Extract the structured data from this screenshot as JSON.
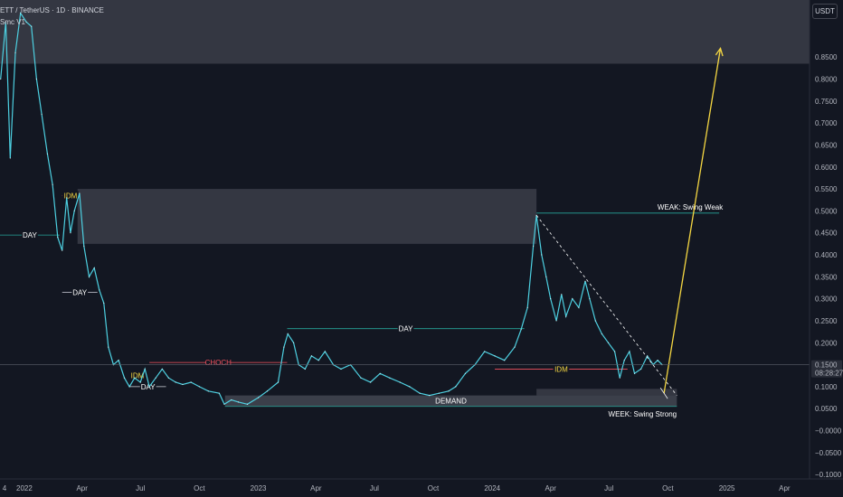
{
  "header": {
    "symbol_line": "ETT / TetherUS · 1D · BINANCE",
    "indicator_line": "Smc V1"
  },
  "price_axis": {
    "currency": "USDT",
    "current_price": "0.1500",
    "countdown": "08:28:27"
  },
  "chart_data": {
    "type": "line",
    "title": "",
    "x_axis": {
      "tick_labels": [
        "4",
        "2022",
        "Apr",
        "Jul",
        "Oct",
        "2023",
        "Apr",
        "Jul",
        "Oct",
        "2024",
        "Apr",
        "Jul",
        "Oct",
        "2025",
        "Apr"
      ],
      "tick_dates": [
        "2021-12-01",
        "2022-01-01",
        "2022-04-01",
        "2022-07-01",
        "2022-10-01",
        "2023-01-01",
        "2023-04-01",
        "2023-07-01",
        "2023-10-01",
        "2024-01-01",
        "2024-04-01",
        "2024-07-01",
        "2024-10-01",
        "2025-01-01",
        "2025-04-01"
      ],
      "range": [
        "2021-11-24",
        "2025-05-10"
      ]
    },
    "y_axis": {
      "range": [
        -0.11,
        0.98
      ],
      "tick_labels": [
        "0.8500",
        "0.8000",
        "0.7500",
        "0.7000",
        "0.6500",
        "0.6000",
        "0.5500",
        "0.5000",
        "0.4500",
        "0.4000",
        "0.3500",
        "0.3000",
        "0.2500",
        "0.2000",
        "0.1500",
        "0.1000",
        "0.0500",
        "−0.0000",
        "−0.0500",
        "−0.1000"
      ],
      "tick_values": [
        0.85,
        0.8,
        0.75,
        0.7,
        0.65,
        0.6,
        0.55,
        0.5,
        0.45,
        0.4,
        0.35,
        0.3,
        0.25,
        0.2,
        0.15,
        0.1,
        0.05,
        0.0,
        -0.05,
        -0.1
      ]
    },
    "grid": false,
    "series": [
      {
        "color": "#4dd0e1",
        "points": [
          [
            "2021-11-25",
            0.8
          ],
          [
            "2021-12-03",
            0.93
          ],
          [
            "2021-12-10",
            0.62
          ],
          [
            "2021-12-18",
            0.86
          ],
          [
            "2021-12-26",
            0.95
          ],
          [
            "2022-01-04",
            0.93
          ],
          [
            "2022-01-12",
            0.92
          ],
          [
            "2022-01-20",
            0.8
          ],
          [
            "2022-01-28",
            0.72
          ],
          [
            "2022-02-06",
            0.63
          ],
          [
            "2022-02-14",
            0.56
          ],
          [
            "2022-02-22",
            0.44
          ],
          [
            "2022-03-01",
            0.41
          ],
          [
            "2022-03-08",
            0.53
          ],
          [
            "2022-03-14",
            0.45
          ],
          [
            "2022-03-20",
            0.5
          ],
          [
            "2022-03-28",
            0.54
          ],
          [
            "2022-04-04",
            0.42
          ],
          [
            "2022-04-12",
            0.35
          ],
          [
            "2022-04-20",
            0.37
          ],
          [
            "2022-04-28",
            0.32
          ],
          [
            "2022-05-05",
            0.29
          ],
          [
            "2022-05-12",
            0.19
          ],
          [
            "2022-05-20",
            0.15
          ],
          [
            "2022-05-28",
            0.16
          ],
          [
            "2022-06-06",
            0.12
          ],
          [
            "2022-06-14",
            0.1
          ],
          [
            "2022-06-22",
            0.12
          ],
          [
            "2022-07-01",
            0.11
          ],
          [
            "2022-07-08",
            0.14
          ],
          [
            "2022-07-15",
            0.1
          ],
          [
            "2022-07-25",
            0.12
          ],
          [
            "2022-08-04",
            0.14
          ],
          [
            "2022-08-14",
            0.12
          ],
          [
            "2022-08-25",
            0.11
          ],
          [
            "2022-09-05",
            0.105
          ],
          [
            "2022-09-18",
            0.11
          ],
          [
            "2022-10-01",
            0.1
          ],
          [
            "2022-10-15",
            0.09
          ],
          [
            "2022-11-01",
            0.085
          ],
          [
            "2022-11-09",
            0.06
          ],
          [
            "2022-11-20",
            0.07
          ],
          [
            "2022-12-01",
            0.065
          ],
          [
            "2022-12-15",
            0.06
          ],
          [
            "2023-01-01",
            0.075
          ],
          [
            "2023-01-15",
            0.09
          ],
          [
            "2023-02-01",
            0.11
          ],
          [
            "2023-02-10",
            0.19
          ],
          [
            "2023-02-16",
            0.22
          ],
          [
            "2023-02-25",
            0.2
          ],
          [
            "2023-03-05",
            0.15
          ],
          [
            "2023-03-15",
            0.14
          ],
          [
            "2023-03-25",
            0.17
          ],
          [
            "2023-04-05",
            0.16
          ],
          [
            "2023-04-15",
            0.18
          ],
          [
            "2023-04-28",
            0.15
          ],
          [
            "2023-05-10",
            0.14
          ],
          [
            "2023-05-25",
            0.15
          ],
          [
            "2023-06-10",
            0.12
          ],
          [
            "2023-06-25",
            0.11
          ],
          [
            "2023-07-10",
            0.13
          ],
          [
            "2023-07-25",
            0.12
          ],
          [
            "2023-08-10",
            0.11
          ],
          [
            "2023-08-25",
            0.1
          ],
          [
            "2023-09-10",
            0.085
          ],
          [
            "2023-09-25",
            0.08
          ],
          [
            "2023-10-10",
            0.085
          ],
          [
            "2023-10-25",
            0.09
          ],
          [
            "2023-11-05",
            0.1
          ],
          [
            "2023-11-20",
            0.13
          ],
          [
            "2023-12-05",
            0.15
          ],
          [
            "2023-12-20",
            0.18
          ],
          [
            "2024-01-05",
            0.17
          ],
          [
            "2024-01-20",
            0.16
          ],
          [
            "2024-02-05",
            0.19
          ],
          [
            "2024-02-15",
            0.23
          ],
          [
            "2024-02-25",
            0.28
          ],
          [
            "2024-03-05",
            0.42
          ],
          [
            "2024-03-10",
            0.49
          ],
          [
            "2024-03-18",
            0.4
          ],
          [
            "2024-03-25",
            0.35
          ],
          [
            "2024-04-01",
            0.3
          ],
          [
            "2024-04-10",
            0.25
          ],
          [
            "2024-04-18",
            0.31
          ],
          [
            "2024-04-25",
            0.26
          ],
          [
            "2024-05-05",
            0.3
          ],
          [
            "2024-05-15",
            0.28
          ],
          [
            "2024-05-25",
            0.34
          ],
          [
            "2024-06-01",
            0.3
          ],
          [
            "2024-06-10",
            0.25
          ],
          [
            "2024-06-20",
            0.22
          ],
          [
            "2024-06-30",
            0.2
          ],
          [
            "2024-07-10",
            0.18
          ],
          [
            "2024-07-18",
            0.12
          ],
          [
            "2024-07-25",
            0.16
          ],
          [
            "2024-08-02",
            0.18
          ],
          [
            "2024-08-10",
            0.13
          ],
          [
            "2024-08-20",
            0.14
          ],
          [
            "2024-08-30",
            0.17
          ],
          [
            "2024-09-08",
            0.15
          ],
          [
            "2024-09-15",
            0.16
          ],
          [
            "2024-09-22",
            0.15
          ]
        ]
      }
    ],
    "zones": [
      {
        "from": "2021-11-24",
        "to": "2025-05-10",
        "low": 0.835,
        "high": 0.99
      },
      {
        "from": "2022-03-25",
        "to": "2024-03-10",
        "low": 0.425,
        "high": 0.55
      },
      {
        "from": "2022-11-10",
        "to": "2024-10-15",
        "low": 0.055,
        "high": 0.08,
        "label": "DEMAND"
      },
      {
        "from": "2024-03-10",
        "to": "2024-10-15",
        "low": 0.08,
        "high": 0.095
      }
    ],
    "levels": [
      {
        "label": "DAY",
        "value": 0.445,
        "from": "2021-11-24",
        "to": "2022-02-25",
        "color": "#26a69a"
      },
      {
        "label": "IDM",
        "value": 0.535,
        "from": "2022-03-01",
        "to": "2022-03-27",
        "color": "#f7525f"
      },
      {
        "label": "DAY",
        "value": 0.315,
        "from": "2022-03-01",
        "to": "2022-04-25",
        "color": "#d1d4dc"
      },
      {
        "label": "IDM",
        "value": 0.125,
        "from": "2022-06-15",
        "to": "2022-07-08",
        "color": "#f7525f"
      },
      {
        "label": "DAY",
        "value": 0.1,
        "from": "2022-06-15",
        "to": "2022-08-10",
        "color": "#d1d4dc"
      },
      {
        "label": "CHOCH",
        "value": 0.155,
        "from": "2022-07-15",
        "to": "2023-02-15",
        "color": "#f7525f"
      },
      {
        "label": "DAY",
        "value": 0.232,
        "from": "2023-02-15",
        "to": "2024-02-20",
        "color": "#26a69a"
      },
      {
        "label": "IDM",
        "value": 0.14,
        "from": "2024-01-05",
        "to": "2024-07-30",
        "color": "#f7525f"
      },
      {
        "label": "WEAK: Swing Weak",
        "value": 0.495,
        "from": "2024-03-10",
        "to": "2024-12-20",
        "color": "#26a69a"
      },
      {
        "label": "WEEK: Swing Strong",
        "value": 0.055,
        "from": "2022-11-10",
        "to": "2024-10-15",
        "color": "#26a69a"
      }
    ],
    "projection": {
      "color": "#f5d742",
      "points": [
        [
          "2024-09-25",
          0.085
        ],
        [
          "2024-12-22",
          0.87
        ]
      ]
    },
    "trendline": {
      "points": [
        [
          "2024-03-10",
          0.49
        ],
        [
          "2024-10-15",
          0.08
        ]
      ]
    }
  }
}
